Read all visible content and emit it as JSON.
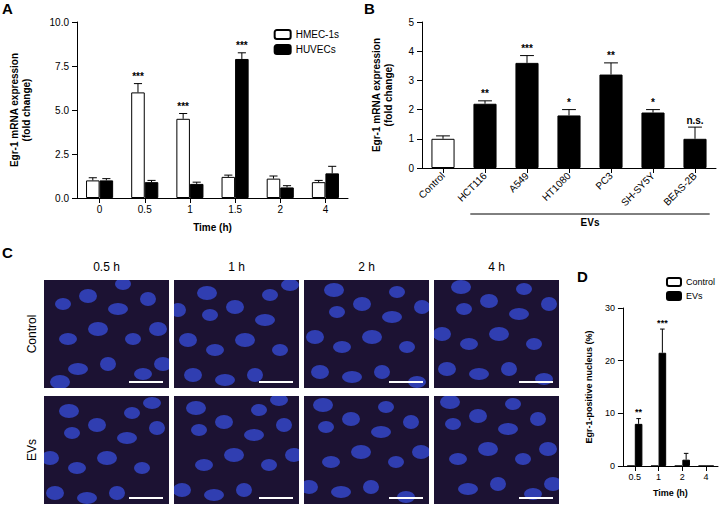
{
  "chart_data": [
    {
      "panel": "A",
      "type": "bar",
      "x_label": "Time (h)",
      "y_label": "Egr-1 mRNA expression (fold change)",
      "categories": [
        "0",
        "0.5",
        "1",
        "1.5",
        "2",
        "4"
      ],
      "series": [
        {
          "name": "HMEC-1s",
          "color": "#ffffff",
          "values": [
            1.0,
            6.0,
            4.5,
            1.2,
            1.1,
            0.9
          ],
          "errors": [
            0.15,
            0.5,
            0.3,
            0.1,
            0.15,
            0.1
          ],
          "significance": [
            null,
            "***",
            "***",
            null,
            null,
            null
          ]
        },
        {
          "name": "HUVECs",
          "color": "#000000",
          "values": [
            1.0,
            0.9,
            0.8,
            7.9,
            0.6,
            1.4
          ],
          "errors": [
            0.1,
            0.1,
            0.1,
            0.35,
            0.1,
            0.4
          ],
          "significance": [
            null,
            null,
            null,
            "***",
            null,
            null
          ]
        }
      ],
      "ylim": [
        0,
        10
      ],
      "yticks": [
        {
          "value": 0,
          "label": "0.0"
        },
        {
          "value": 2.5,
          "label": "2.5"
        },
        {
          "value": 5,
          "label": "5.0"
        },
        {
          "value": 7.5,
          "label": "7.5"
        },
        {
          "value": 10,
          "label": "10.0"
        }
      ],
      "legend": "upper right",
      "grid": false
    },
    {
      "panel": "B",
      "type": "bar",
      "y_label": "Egr-1 mRNA expression (fold change)",
      "categories": [
        "Control",
        "HCT116",
        "A549",
        "HT1080",
        "PC3",
        "SH-SY5Y",
        "BEAS-2B"
      ],
      "values": [
        1.0,
        2.2,
        3.6,
        1.8,
        3.2,
        1.9,
        1.0
      ],
      "errors": [
        0.1,
        0.1,
        0.25,
        0.2,
        0.4,
        0.1,
        0.4
      ],
      "significance": [
        null,
        "**",
        "***",
        "*",
        "**",
        "*",
        "n.s."
      ],
      "colors": [
        "#ffffff",
        "#000000",
        "#000000",
        "#000000",
        "#000000",
        "#000000",
        "#000000"
      ],
      "group": {
        "label": "EVs",
        "from": "HCT116",
        "to": "BEAS-2B"
      },
      "ylim": [
        0,
        5
      ],
      "yticks": [
        0,
        1,
        2,
        3,
        4,
        5
      ],
      "grid": false
    },
    {
      "panel": "D",
      "type": "bar",
      "x_label": "Time (h)",
      "y_label": "Egr-1-positive nucleus (%)",
      "categories": [
        "0.5",
        "1",
        "2",
        "4"
      ],
      "series": [
        {
          "name": "Control",
          "color": "#ffffff",
          "values": [
            0,
            0,
            0,
            0
          ],
          "errors": [
            0,
            0,
            0,
            0
          ],
          "significance": [
            null,
            null,
            null,
            null
          ]
        },
        {
          "name": "EVs",
          "color": "#000000",
          "values": [
            8,
            21.5,
            1.2,
            0
          ],
          "errors": [
            1,
            4.5,
            1.2,
            0
          ],
          "significance": [
            "**",
            "***",
            null,
            null
          ]
        }
      ],
      "ylim": [
        0,
        30
      ],
      "yticks": [
        0,
        10,
        20,
        30
      ],
      "legend": "upper right",
      "grid": false
    }
  ],
  "image_panel": {
    "panel": "C",
    "columns": [
      "0.5 h",
      "1 h",
      "2 h",
      "4 h"
    ],
    "rows": [
      "Control",
      "EVs"
    ]
  }
}
